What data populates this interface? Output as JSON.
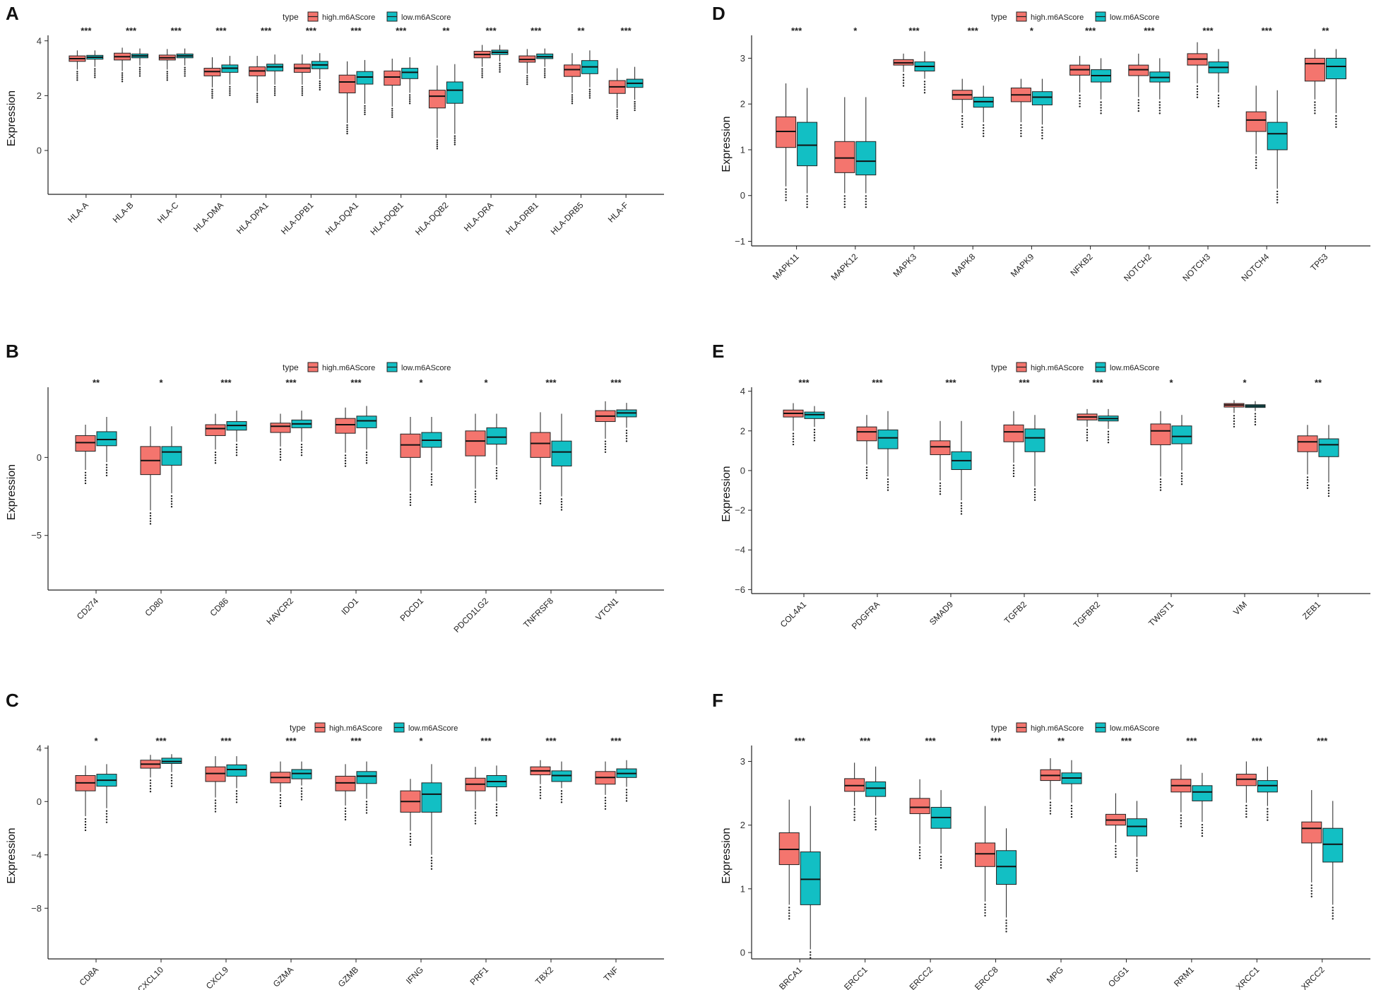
{
  "legend": {
    "title": "type",
    "high_label": "high.m6AScore",
    "low_label": "low.m6AScore",
    "high_color": "#F4756E",
    "low_color": "#12BFC4"
  },
  "chart_data": [
    {
      "panel": "A",
      "type": "boxplot",
      "ylabel": "Expression",
      "ylim": [
        -1.6,
        4.2
      ],
      "yticks": [
        0,
        2,
        4
      ],
      "categories": [
        "HLA-A",
        "HLA-B",
        "HLA-C",
        "HLA-DMA",
        "HLA-DPA1",
        "HLA-DPB1",
        "HLA-DQA1",
        "HLA-DQB1",
        "HLA-DQB2",
        "HLA-DRA",
        "HLA-DRB1",
        "HLA-DRB5",
        "HLA-F"
      ],
      "significance": [
        "***",
        "***",
        "***",
        "***",
        "***",
        "***",
        "***",
        "***",
        "**",
        "***",
        "***",
        "**",
        "***"
      ],
      "series": [
        {
          "name": "high.m6AScore",
          "boxes": [
            [
              2.95,
              3.25,
              3.35,
              3.45,
              3.65
            ],
            [
              2.9,
              3.3,
              3.42,
              3.55,
              3.75
            ],
            [
              2.95,
              3.3,
              3.38,
              3.48,
              3.7
            ],
            [
              2.3,
              2.72,
              2.88,
              3.0,
              3.4
            ],
            [
              2.15,
              2.72,
              2.9,
              3.05,
              3.45
            ],
            [
              2.4,
              2.85,
              3.0,
              3.15,
              3.5
            ],
            [
              1.0,
              2.1,
              2.5,
              2.75,
              3.25
            ],
            [
              1.6,
              2.38,
              2.68,
              2.9,
              3.35
            ],
            [
              0.45,
              1.55,
              1.98,
              2.2,
              3.1
            ],
            [
              3.05,
              3.38,
              3.5,
              3.62,
              3.85
            ],
            [
              2.8,
              3.22,
              3.32,
              3.45,
              3.7
            ],
            [
              2.1,
              2.7,
              2.95,
              3.12,
              3.55
            ],
            [
              1.55,
              2.08,
              2.32,
              2.55,
              3.0
            ]
          ]
        },
        {
          "name": "low.m6AScore",
          "boxes": [
            [
              3.05,
              3.33,
              3.4,
              3.47,
              3.65
            ],
            [
              3.1,
              3.38,
              3.45,
              3.52,
              3.72
            ],
            [
              3.1,
              3.38,
              3.45,
              3.52,
              3.72
            ],
            [
              2.4,
              2.85,
              3.0,
              3.12,
              3.45
            ],
            [
              2.4,
              2.9,
              3.05,
              3.15,
              3.5
            ],
            [
              2.6,
              2.98,
              3.12,
              3.25,
              3.55
            ],
            [
              1.7,
              2.42,
              2.68,
              2.88,
              3.3
            ],
            [
              2.1,
              2.62,
              2.85,
              3.0,
              3.4
            ],
            [
              0.6,
              1.72,
              2.2,
              2.5,
              3.15
            ],
            [
              3.25,
              3.5,
              3.58,
              3.66,
              3.85
            ],
            [
              3.05,
              3.35,
              3.42,
              3.52,
              3.72
            ],
            [
              2.3,
              2.8,
              3.05,
              3.28,
              3.65
            ],
            [
              1.85,
              2.3,
              2.45,
              2.6,
              3.05
            ]
          ]
        }
      ]
    },
    {
      "panel": "B",
      "type": "boxplot",
      "ylabel": "Expression",
      "ylim": [
        -8.5,
        4.5
      ],
      "yticks": [
        -5,
        0
      ],
      "categories": [
        "CD274",
        "CD80",
        "CD86",
        "HAVCR2",
        "IDO1",
        "PDCD1",
        "PDCD1LG2",
        "TNFRSF8",
        "VTCN1"
      ],
      "significance": [
        "**",
        "*",
        "***",
        "***",
        "***",
        "*",
        "*",
        "***",
        "***"
      ],
      "series": [
        {
          "name": "high.m6AScore",
          "boxes": [
            [
              -0.8,
              0.4,
              0.95,
              1.4,
              2.1
            ],
            [
              -3.4,
              -1.1,
              -0.2,
              0.7,
              2.0
            ],
            [
              0.5,
              1.4,
              1.85,
              2.1,
              2.8
            ],
            [
              0.7,
              1.6,
              2.0,
              2.2,
              2.8
            ],
            [
              0.3,
              1.55,
              2.1,
              2.5,
              3.2
            ],
            [
              -2.2,
              0.0,
              0.8,
              1.5,
              2.6
            ],
            [
              -2.0,
              0.1,
              1.05,
              1.7,
              2.8
            ],
            [
              -2.1,
              0.0,
              0.9,
              1.6,
              2.9
            ],
            [
              1.2,
              2.3,
              2.65,
              3.0,
              3.6
            ]
          ]
        },
        {
          "name": "low.m6AScore",
          "boxes": [
            [
              -0.3,
              0.75,
              1.15,
              1.65,
              2.6
            ],
            [
              -2.3,
              -0.5,
              0.35,
              0.7,
              2.0
            ],
            [
              1.0,
              1.75,
              2.05,
              2.3,
              3.0
            ],
            [
              1.0,
              1.9,
              2.15,
              2.4,
              3.0
            ],
            [
              0.5,
              1.9,
              2.35,
              2.65,
              3.3
            ],
            [
              -0.9,
              0.65,
              1.1,
              1.6,
              2.6
            ],
            [
              -0.5,
              0.85,
              1.3,
              1.9,
              2.8
            ],
            [
              -2.5,
              -0.55,
              0.35,
              1.05,
              2.8
            ],
            [
              1.9,
              2.6,
              2.85,
              3.05,
              3.5
            ]
          ]
        }
      ]
    },
    {
      "panel": "C",
      "type": "boxplot",
      "ylabel": "Expression",
      "ylim": [
        -11.8,
        4.2
      ],
      "yticks": [
        -8,
        -4,
        0,
        4
      ],
      "categories": [
        "CD8A",
        "CXCL10",
        "CXCL9",
        "GZMA",
        "GZMB",
        "IFNG",
        "PRF1",
        "TBX2",
        "TNF"
      ],
      "significance": [
        "*",
        "***",
        "***",
        "***",
        "***",
        "*",
        "***",
        "***",
        "***"
      ],
      "series": [
        {
          "name": "high.m6AScore",
          "boxes": [
            [
              -1.1,
              0.8,
              1.4,
              1.95,
              2.7
            ],
            [
              1.8,
              2.5,
              2.8,
              3.1,
              3.5
            ],
            [
              0.3,
              1.5,
              2.1,
              2.6,
              3.4
            ],
            [
              0.7,
              1.4,
              1.8,
              2.2,
              3.0
            ],
            [
              -0.3,
              0.8,
              1.4,
              1.9,
              2.8
            ],
            [
              -2.2,
              -0.8,
              0.0,
              0.8,
              1.7
            ],
            [
              -0.6,
              0.8,
              1.3,
              1.75,
              2.6
            ],
            [
              1.3,
              2.0,
              2.3,
              2.6,
              3.1
            ],
            [
              0.5,
              1.3,
              1.8,
              2.25,
              3.0
            ]
          ]
        },
        {
          "name": "low.m6AScore",
          "boxes": [
            [
              -0.5,
              1.15,
              1.6,
              2.05,
              2.8
            ],
            [
              2.2,
              2.85,
              3.0,
              3.25,
              3.55
            ],
            [
              1.0,
              1.9,
              2.4,
              2.75,
              3.4
            ],
            [
              1.2,
              1.7,
              2.1,
              2.4,
              3.0
            ],
            [
              0.2,
              1.35,
              1.9,
              2.25,
              3.0
            ],
            [
              -4.0,
              -0.8,
              0.55,
              1.4,
              2.8
            ],
            [
              0.0,
              1.1,
              1.5,
              1.95,
              2.7
            ],
            [
              1.0,
              1.5,
              1.95,
              2.3,
              3.0
            ],
            [
              1.1,
              1.8,
              2.1,
              2.45,
              3.1
            ]
          ]
        }
      ]
    },
    {
      "panel": "D",
      "type": "boxplot",
      "ylabel": "Expression",
      "ylim": [
        -1.1,
        3.5
      ],
      "yticks": [
        -1,
        0,
        1,
        2,
        3
      ],
      "categories": [
        "MAPK11",
        "MAPK12",
        "MAPK3",
        "MAPK8",
        "MAPK9",
        "NFKB2",
        "NOTCH2",
        "NOTCH3",
        "NOTCH4",
        "TP53"
      ],
      "significance": [
        "***",
        "*",
        "***",
        "***",
        "*",
        "***",
        "***",
        "***",
        "***",
        "**"
      ],
      "series": [
        {
          "name": "high.m6AScore",
          "boxes": [
            [
              0.2,
              1.05,
              1.4,
              1.72,
              2.45
            ],
            [
              0.05,
              0.5,
              0.82,
              1.18,
              2.15
            ],
            [
              2.7,
              2.85,
              2.9,
              2.97,
              3.1
            ],
            [
              1.8,
              2.1,
              2.2,
              2.3,
              2.55
            ],
            [
              1.6,
              2.05,
              2.2,
              2.35,
              2.55
            ],
            [
              2.25,
              2.63,
              2.75,
              2.85,
              3.05
            ],
            [
              2.15,
              2.62,
              2.75,
              2.85,
              3.1
            ],
            [
              2.45,
              2.85,
              2.98,
              3.1,
              3.35
            ],
            [
              0.9,
              1.4,
              1.65,
              1.83,
              2.4
            ],
            [
              2.1,
              2.5,
              2.88,
              3.0,
              3.2
            ]
          ]
        },
        {
          "name": "low.m6AScore",
          "boxes": [
            [
              0.05,
              0.65,
              1.1,
              1.6,
              2.35
            ],
            [
              0.05,
              0.45,
              0.75,
              1.18,
              2.15
            ],
            [
              2.55,
              2.72,
              2.82,
              2.92,
              3.15
            ],
            [
              1.6,
              1.93,
              2.05,
              2.15,
              2.4
            ],
            [
              1.55,
              1.98,
              2.15,
              2.27,
              2.55
            ],
            [
              2.1,
              2.48,
              2.62,
              2.75,
              3.0
            ],
            [
              2.1,
              2.48,
              2.58,
              2.7,
              3.0
            ],
            [
              2.25,
              2.68,
              2.8,
              2.92,
              3.2
            ],
            [
              0.15,
              1.0,
              1.35,
              1.6,
              2.3
            ],
            [
              1.8,
              2.55,
              2.82,
              3.0,
              3.2
            ]
          ]
        }
      ]
    },
    {
      "panel": "E",
      "type": "boxplot",
      "ylabel": "Expression",
      "ylim": [
        -6.2,
        4.2
      ],
      "yticks": [
        -6,
        -4,
        -2,
        0,
        2,
        4
      ],
      "categories": [
        "COL4A1",
        "PDGFRA",
        "SMAD9",
        "TGFB2",
        "TGFBR2",
        "TWIST1",
        "VIM",
        "ZEB1"
      ],
      "significance": [
        "***",
        "***",
        "***",
        "***",
        "***",
        "*",
        "*",
        "**"
      ],
      "series": [
        {
          "name": "high.m6AScore",
          "boxes": [
            [
              2.0,
              2.7,
              2.88,
              3.05,
              3.4
            ],
            [
              0.3,
              1.5,
              1.95,
              2.2,
              2.8
            ],
            [
              -0.5,
              0.8,
              1.2,
              1.5,
              2.5
            ],
            [
              0.4,
              1.45,
              1.95,
              2.3,
              3.0
            ],
            [
              2.2,
              2.55,
              2.7,
              2.85,
              3.1
            ],
            [
              -0.3,
              1.3,
              2.0,
              2.35,
              3.0
            ],
            [
              2.9,
              3.2,
              3.3,
              3.38,
              3.55
            ],
            [
              -0.2,
              0.95,
              1.45,
              1.75,
              2.3
            ]
          ]
        },
        {
          "name": "low.m6AScore",
          "boxes": [
            [
              2.2,
              2.62,
              2.82,
              2.95,
              3.25
            ],
            [
              -0.3,
              1.1,
              1.65,
              2.05,
              3.0
            ],
            [
              -1.5,
              0.05,
              0.5,
              0.95,
              2.5
            ],
            [
              -0.8,
              0.95,
              1.65,
              2.1,
              2.8
            ],
            [
              2.1,
              2.5,
              2.62,
              2.75,
              3.1
            ],
            [
              0.0,
              1.35,
              1.72,
              2.25,
              2.8
            ],
            [
              3.0,
              3.18,
              3.25,
              3.32,
              3.5
            ],
            [
              -0.6,
              0.7,
              1.3,
              1.6,
              2.3
            ]
          ]
        }
      ]
    },
    {
      "panel": "F",
      "type": "boxplot",
      "ylabel": "Expression",
      "ylim": [
        -0.1,
        3.25
      ],
      "yticks": [
        0,
        1,
        2,
        3
      ],
      "categories": [
        "BRCA1",
        "ERCC1",
        "ERCC2",
        "ERCC8",
        "MPG",
        "OGG1",
        "RRM1",
        "XRCC1",
        "XRCC2"
      ],
      "significance": [
        "***",
        "***",
        "***",
        "***",
        "**",
        "***",
        "***",
        "***",
        "***"
      ],
      "series": [
        {
          "name": "high.m6AScore",
          "boxes": [
            [
              0.75,
              1.38,
              1.62,
              1.88,
              2.4
            ],
            [
              2.3,
              2.53,
              2.62,
              2.73,
              2.98
            ],
            [
              1.7,
              2.18,
              2.28,
              2.42,
              2.72
            ],
            [
              0.8,
              1.35,
              1.55,
              1.72,
              2.3
            ],
            [
              2.4,
              2.7,
              2.78,
              2.87,
              3.05
            ],
            [
              1.72,
              2.0,
              2.08,
              2.17,
              2.5
            ],
            [
              2.2,
              2.52,
              2.62,
              2.72,
              2.95
            ],
            [
              2.35,
              2.62,
              2.72,
              2.8,
              3.0
            ],
            [
              1.1,
              1.72,
              1.95,
              2.05,
              2.55
            ]
          ]
        },
        {
          "name": "low.m6AScore",
          "boxes": [
            [
              0.05,
              0.75,
              1.15,
              1.58,
              2.3
            ],
            [
              2.15,
              2.45,
              2.58,
              2.68,
              2.92
            ],
            [
              1.55,
              1.95,
              2.12,
              2.28,
              2.55
            ],
            [
              0.55,
              1.07,
              1.35,
              1.6,
              1.95
            ],
            [
              2.35,
              2.65,
              2.74,
              2.82,
              3.02
            ],
            [
              1.5,
              1.83,
              1.98,
              2.1,
              2.38
            ],
            [
              2.05,
              2.38,
              2.52,
              2.62,
              2.82
            ],
            [
              2.3,
              2.52,
              2.62,
              2.7,
              2.92
            ],
            [
              0.75,
              1.42,
              1.7,
              1.95,
              2.38
            ]
          ]
        }
      ]
    }
  ]
}
